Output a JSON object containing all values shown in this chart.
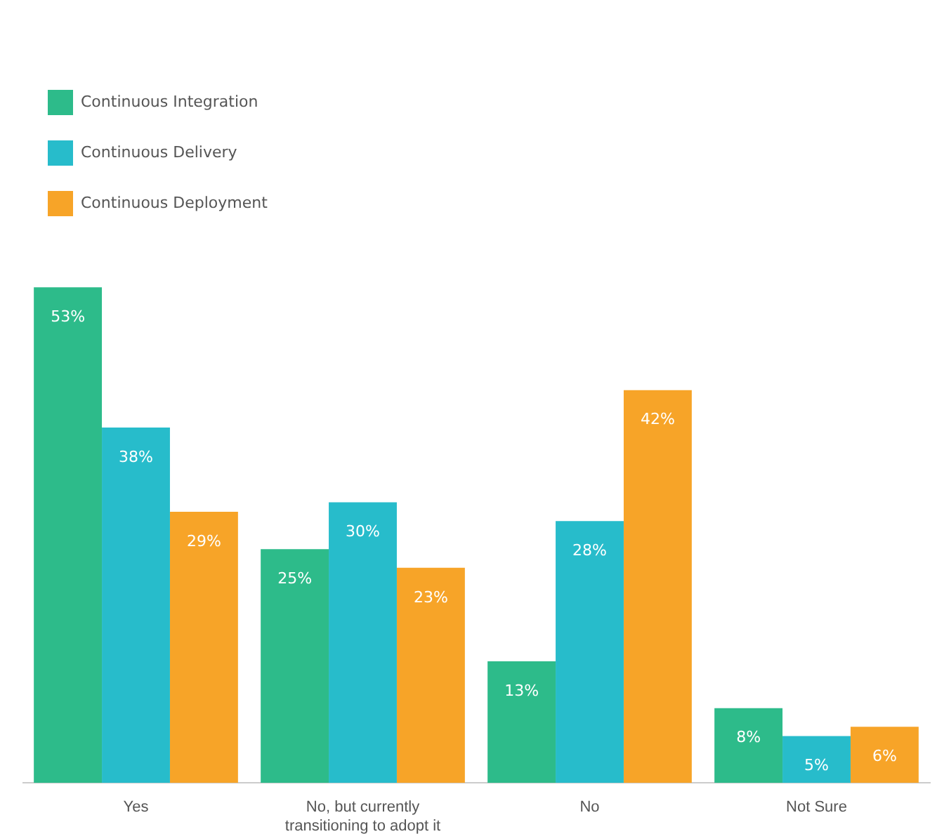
{
  "chart_data": {
    "type": "bar",
    "categories": [
      "Yes",
      "No, but currently transitioning to adopt it",
      "No",
      "Not Sure"
    ],
    "series": [
      {
        "name": "Continuous Integration",
        "color": "#2dbb8a",
        "values": [
          53,
          25,
          13,
          8
        ],
        "value_labels": [
          "53%",
          "25%",
          "13%",
          "8%"
        ]
      },
      {
        "name": "Continuous Delivery",
        "color": "#27bccb",
        "values": [
          38,
          30,
          28,
          5
        ],
        "value_labels": [
          "38%",
          "30%",
          "28%",
          "5%"
        ]
      },
      {
        "name": "Continuous Deployment",
        "color": "#f7a428",
        "values": [
          29,
          23,
          42,
          6
        ],
        "value_labels": [
          "29%",
          "23%",
          "42%",
          "6%"
        ]
      }
    ],
    "tick_labels": "x",
    "grid": false,
    "legend": "top left"
  }
}
